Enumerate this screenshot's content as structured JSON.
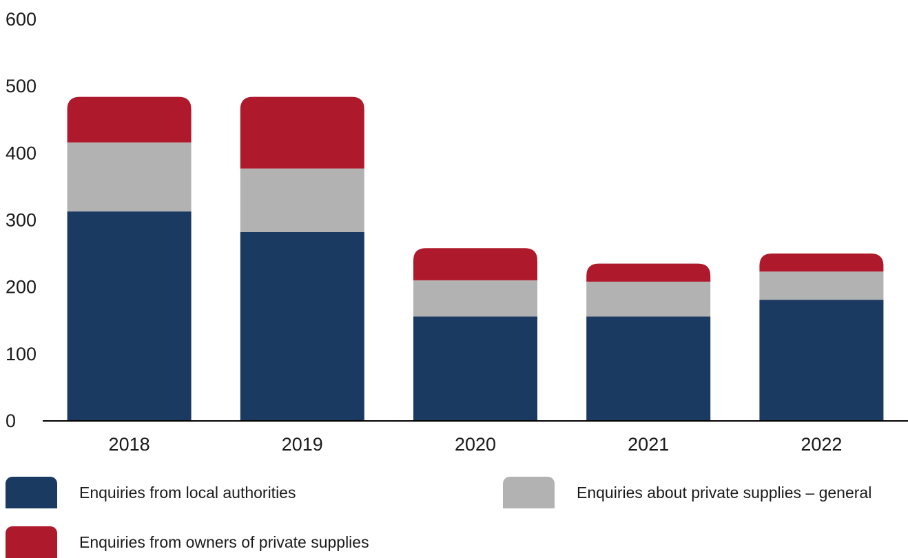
{
  "chart_data": {
    "type": "bar",
    "stacked": true,
    "categories": [
      "2018",
      "2019",
      "2020",
      "2021",
      "2022"
    ],
    "series": [
      {
        "name": "Enquiries from local authorities",
        "color": "#1b3a61",
        "values": [
          312,
          281,
          155,
          155,
          180
        ]
      },
      {
        "name": "Enquiries about private supplies – general",
        "color": "#b2b2b2",
        "values": [
          103,
          95,
          54,
          52,
          42
        ]
      },
      {
        "name": "Enquiries from owners of private supplies",
        "color": "#ae1a2c",
        "values": [
          68,
          107,
          48,
          27,
          27
        ]
      }
    ],
    "y_ticks": [
      "0",
      "100",
      "200",
      "300",
      "400",
      "500",
      "600"
    ],
    "ylim": [
      0,
      600
    ],
    "grid": false,
    "legend_position": "bottom",
    "title": "",
    "xlabel": "",
    "ylabel": ""
  }
}
